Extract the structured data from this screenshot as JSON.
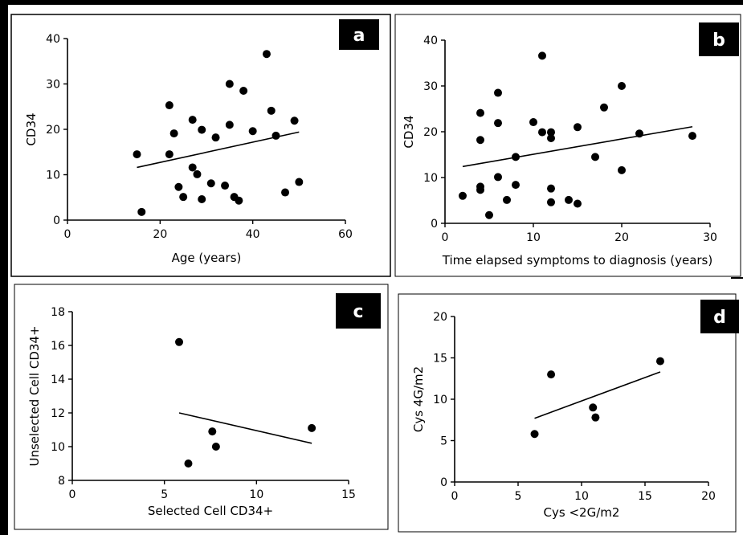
{
  "chart_data": [
    {
      "panel": "a",
      "type": "scatter",
      "xlabel": "Age (years)",
      "ylabel": "CD34",
      "xlim": [
        0,
        60
      ],
      "ylim": [
        0,
        40
      ],
      "xticks": [
        0,
        20,
        40,
        60
      ],
      "yticks": [
        0,
        10,
        20,
        30,
        40
      ],
      "points": [
        [
          15,
          14.5
        ],
        [
          16,
          1.8
        ],
        [
          22,
          25.3
        ],
        [
          22,
          14.5
        ],
        [
          23,
          19.1
        ],
        [
          24,
          7.3
        ],
        [
          25,
          5.1
        ],
        [
          27,
          22.1
        ],
        [
          27,
          11.6
        ],
        [
          28,
          10.1
        ],
        [
          29,
          19.9
        ],
        [
          29,
          4.6
        ],
        [
          31,
          8.1
        ],
        [
          32,
          18.2
        ],
        [
          34,
          7.6
        ],
        [
          35,
          30.0
        ],
        [
          35,
          21.0
        ],
        [
          36,
          5.1
        ],
        [
          37,
          4.3
        ],
        [
          38,
          28.5
        ],
        [
          40,
          19.6
        ],
        [
          43,
          36.6
        ],
        [
          44,
          24.1
        ],
        [
          45,
          18.6
        ],
        [
          47,
          6.1
        ],
        [
          49,
          21.9
        ],
        [
          50,
          8.4
        ]
      ],
      "trend": [
        [
          15,
          11.6
        ],
        [
          50,
          19.4
        ]
      ]
    },
    {
      "panel": "b",
      "type": "scatter",
      "xlabel": "Time elapsed symptoms to diagnosis (years)",
      "ylabel": "CD34",
      "xlim": [
        0,
        30
      ],
      "ylim": [
        0,
        40
      ],
      "xticks": [
        0,
        10,
        20,
        30
      ],
      "yticks": [
        0,
        10,
        20,
        30,
        40
      ],
      "points": [
        [
          2,
          6.0
        ],
        [
          4,
          24.1
        ],
        [
          4,
          18.2
        ],
        [
          4,
          8.0
        ],
        [
          4,
          7.3
        ],
        [
          5,
          1.8
        ],
        [
          6,
          28.5
        ],
        [
          6,
          21.9
        ],
        [
          6,
          10.1
        ],
        [
          7,
          5.1
        ],
        [
          8,
          14.5
        ],
        [
          8,
          8.4
        ],
        [
          10,
          22.1
        ],
        [
          11,
          36.6
        ],
        [
          11,
          19.9
        ],
        [
          12,
          19.9
        ],
        [
          12,
          18.6
        ],
        [
          12,
          7.6
        ],
        [
          12,
          4.6
        ],
        [
          14,
          5.1
        ],
        [
          15,
          21.0
        ],
        [
          15,
          4.3
        ],
        [
          17,
          14.5
        ],
        [
          18,
          25.3
        ],
        [
          20,
          30.0
        ],
        [
          20,
          11.6
        ],
        [
          22,
          19.6
        ],
        [
          28,
          19.1
        ]
      ],
      "trend": [
        [
          2,
          12.4
        ],
        [
          28,
          21.1
        ]
      ]
    },
    {
      "panel": "c",
      "type": "scatter",
      "xlabel": "Selected Cell CD34+",
      "ylabel": "Unselected Cell CD34+",
      "xlim": [
        0,
        15
      ],
      "ylim": [
        8,
        18
      ],
      "xticks": [
        0,
        5,
        10,
        15
      ],
      "yticks": [
        8,
        10,
        12,
        14,
        16,
        18
      ],
      "points": [
        [
          5.8,
          16.2
        ],
        [
          6.3,
          9.0
        ],
        [
          7.6,
          10.9
        ],
        [
          7.8,
          10.0
        ],
        [
          13.0,
          11.1
        ]
      ],
      "trend": [
        [
          5.8,
          12.0
        ],
        [
          13.0,
          10.2
        ]
      ]
    },
    {
      "panel": "d",
      "type": "scatter",
      "xlabel": "Cys <2G/m2",
      "ylabel": "Cys 4G/m2",
      "xlim": [
        0,
        20
      ],
      "ylim": [
        0,
        20
      ],
      "xticks": [
        0,
        5,
        10,
        15,
        20
      ],
      "yticks": [
        0,
        5,
        10,
        15,
        20
      ],
      "points": [
        [
          6.3,
          5.8
        ],
        [
          7.6,
          13.0
        ],
        [
          10.9,
          9.0
        ],
        [
          11.1,
          7.8
        ],
        [
          16.2,
          14.6
        ]
      ],
      "trend": [
        [
          6.3,
          7.7
        ],
        [
          16.2,
          13.3
        ]
      ]
    }
  ]
}
